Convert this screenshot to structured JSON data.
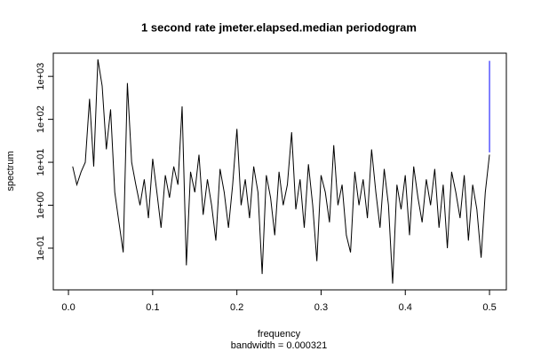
{
  "chart_data": {
    "type": "line",
    "title": "1 second rate jmeter.elapsed.median periodogram",
    "x_label": "frequency",
    "subtitle": "bandwidth = 0.000321",
    "y_label": "spectrum",
    "x": [
      0.005,
      0.01,
      0.015,
      0.02,
      0.025,
      0.03,
      0.035,
      0.04,
      0.045,
      0.05,
      0.055,
      0.06,
      0.065,
      0.07,
      0.075,
      0.08,
      0.085,
      0.09,
      0.095,
      0.1,
      0.105,
      0.11,
      0.115,
      0.12,
      0.125,
      0.13,
      0.135,
      0.14,
      0.145,
      0.15,
      0.155,
      0.16,
      0.165,
      0.17,
      0.175,
      0.18,
      0.185,
      0.19,
      0.195,
      0.2,
      0.205,
      0.21,
      0.215,
      0.22,
      0.225,
      0.23,
      0.235,
      0.24,
      0.245,
      0.25,
      0.255,
      0.26,
      0.265,
      0.27,
      0.275,
      0.28,
      0.285,
      0.29,
      0.295,
      0.3,
      0.305,
      0.31,
      0.315,
      0.32,
      0.325,
      0.33,
      0.335,
      0.34,
      0.345,
      0.35,
      0.355,
      0.36,
      0.365,
      0.37,
      0.375,
      0.38,
      0.385,
      0.39,
      0.395,
      0.4,
      0.405,
      0.41,
      0.415,
      0.42,
      0.425,
      0.43,
      0.435,
      0.44,
      0.445,
      0.45,
      0.455,
      0.46,
      0.465,
      0.47,
      0.475,
      0.48,
      0.485,
      0.49,
      0.495,
      0.5
    ],
    "series": [
      {
        "name": "spectrum",
        "color": "#000000",
        "values": [
          8,
          3,
          6,
          10,
          300,
          8,
          2500,
          600,
          20,
          170,
          2,
          0.4,
          0.08,
          700,
          10,
          3,
          1,
          4,
          0.5,
          12,
          2,
          0.3,
          5,
          1.5,
          8,
          3,
          200,
          0.04,
          6,
          2,
          15,
          0.6,
          4,
          1,
          0.15,
          7,
          2,
          0.3,
          3,
          60,
          1,
          4,
          0.5,
          8,
          2,
          0.025,
          5,
          1.5,
          0.2,
          6,
          1,
          3,
          50,
          0.8,
          4,
          0.3,
          9,
          1,
          0.05,
          5,
          2,
          0.4,
          25,
          1,
          3,
          0.2,
          0.08,
          6,
          1,
          4,
          0.5,
          20,
          2,
          0.3,
          7,
          1,
          0.015,
          3,
          0.8,
          5,
          0.2,
          8,
          1.5,
          0.4,
          4,
          1,
          7,
          0.3,
          3,
          0.1,
          6,
          2,
          0.5,
          5,
          0.15,
          3,
          0.8,
          0.06,
          2,
          15
        ]
      }
    ],
    "ci_bar": {
      "x": 0.5,
      "low": 17,
      "high": 2300,
      "color": "#0000ff"
    },
    "xlim": [
      -0.018,
      0.52
    ],
    "xticks": [
      {
        "value": 0,
        "label": "0.0"
      },
      0.1,
      0.2,
      0.3,
      0.4,
      0.5
    ],
    "ylim": [
      0.0107,
      3467
    ],
    "log_y": true,
    "yticks": [
      {
        "value": 0.1,
        "label": "1e-01"
      },
      {
        "value": 1,
        "label": "1e+00"
      },
      {
        "value": 10,
        "label": "1e+01"
      },
      {
        "value": 100,
        "label": "1e+02"
      },
      {
        "value": 1000,
        "label": "1e+03"
      }
    ]
  }
}
